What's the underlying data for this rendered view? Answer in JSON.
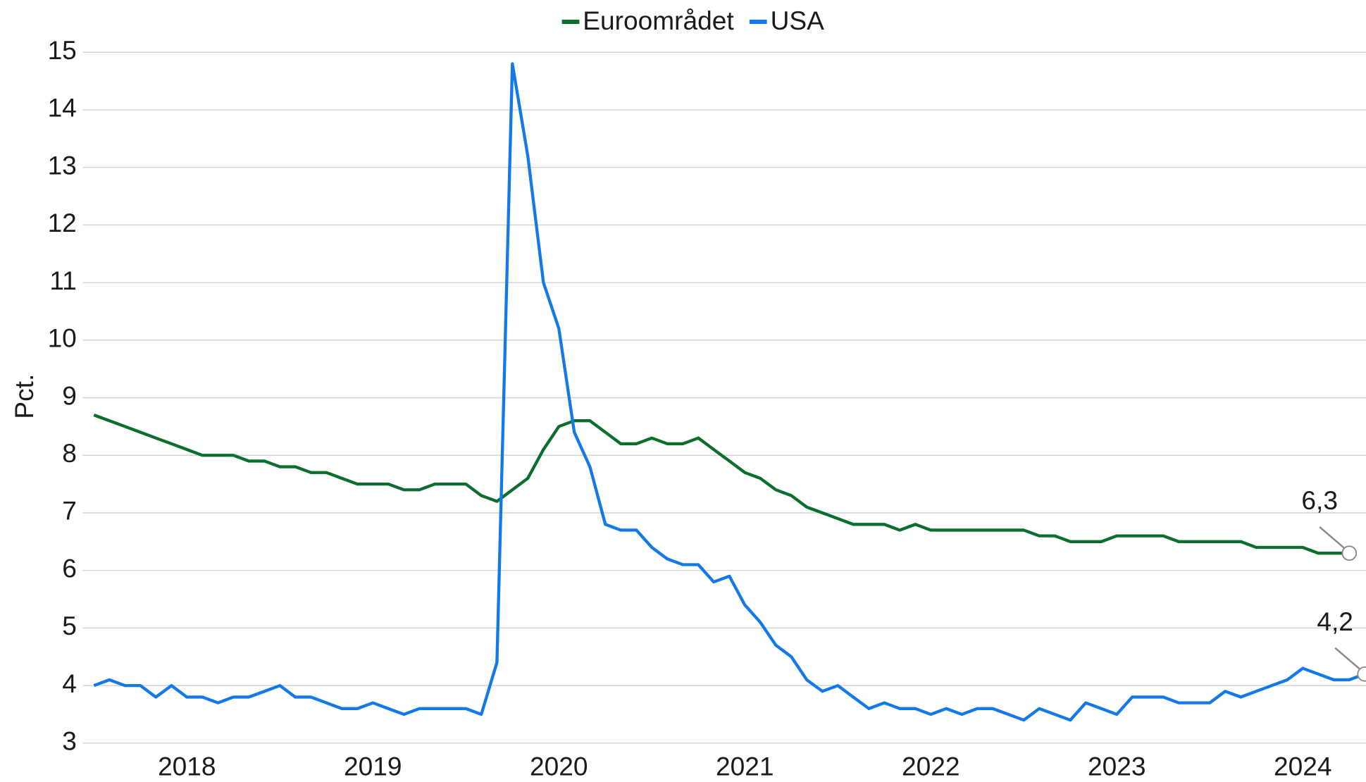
{
  "chart_data": {
    "type": "line",
    "ylabel": "Pct.",
    "legend": "top",
    "grid": true,
    "xlim": [
      2017.94,
      2024.84
    ],
    "xticks": [
      {
        "value": 2018.5,
        "label": "2018"
      },
      {
        "value": 2019.5,
        "label": "2019"
      },
      {
        "value": 2020.5,
        "label": "2020"
      },
      {
        "value": 2021.5,
        "label": "2021"
      },
      {
        "value": 2022.5,
        "label": "2022"
      },
      {
        "value": 2023.5,
        "label": "2023"
      },
      {
        "value": 2024.5,
        "label": "2024"
      }
    ],
    "ylim": [
      3,
      15
    ],
    "yticks": [
      3,
      4,
      5,
      6,
      7,
      8,
      9,
      10,
      11,
      12,
      13,
      14,
      15
    ],
    "x": [
      2018,
      2018.083,
      2018.167,
      2018.25,
      2018.333,
      2018.417,
      2018.5,
      2018.583,
      2018.667,
      2018.75,
      2018.833,
      2018.917,
      2019,
      2019.083,
      2019.167,
      2019.25,
      2019.333,
      2019.417,
      2019.5,
      2019.583,
      2019.667,
      2019.75,
      2019.833,
      2019.917,
      2020,
      2020.083,
      2020.167,
      2020.25,
      2020.333,
      2020.417,
      2020.5,
      2020.583,
      2020.667,
      2020.75,
      2020.833,
      2020.917,
      2021,
      2021.083,
      2021.167,
      2021.25,
      2021.333,
      2021.417,
      2021.5,
      2021.583,
      2021.667,
      2021.75,
      2021.833,
      2021.917,
      2022,
      2022.083,
      2022.167,
      2022.25,
      2022.333,
      2022.417,
      2022.5,
      2022.583,
      2022.667,
      2022.75,
      2022.833,
      2022.917,
      2023,
      2023.083,
      2023.167,
      2023.25,
      2023.333,
      2023.417,
      2023.5,
      2023.583,
      2023.667,
      2023.75,
      2023.833,
      2023.917,
      2024,
      2024.083,
      2024.167,
      2024.25,
      2024.333,
      2024.417,
      2024.5,
      2024.583,
      2024.667,
      2024.75,
      2024.833
    ],
    "series": [
      {
        "name": "Euroområdet",
        "color": "#0b6e2e",
        "values": [
          8.7,
          8.6,
          8.5,
          8.4,
          8.3,
          8.2,
          8.1,
          8.0,
          8.0,
          8.0,
          7.9,
          7.9,
          7.8,
          7.8,
          7.7,
          7.7,
          7.6,
          7.5,
          7.5,
          7.5,
          7.4,
          7.4,
          7.5,
          7.5,
          7.5,
          7.3,
          7.2,
          7.4,
          7.6,
          8.1,
          8.5,
          8.6,
          8.6,
          8.4,
          8.2,
          8.2,
          8.3,
          8.2,
          8.2,
          8.3,
          8.1,
          7.9,
          7.7,
          7.6,
          7.4,
          7.3,
          7.1,
          7.0,
          6.9,
          6.8,
          6.8,
          6.8,
          6.7,
          6.8,
          6.7,
          6.7,
          6.7,
          6.7,
          6.7,
          6.7,
          6.7,
          6.6,
          6.6,
          6.5,
          6.5,
          6.5,
          6.6,
          6.6,
          6.6,
          6.6,
          6.5,
          6.5,
          6.5,
          6.5,
          6.5,
          6.4,
          6.4,
          6.4,
          6.4,
          6.3,
          6.3,
          6.3,
          null
        ],
        "value_labels": [
          null,
          null,
          null,
          null,
          null,
          null,
          null,
          null,
          null,
          null,
          null,
          null,
          null,
          null,
          null,
          null,
          null,
          null,
          null,
          null,
          null,
          null,
          null,
          null,
          null,
          null,
          null,
          null,
          null,
          null,
          null,
          null,
          null,
          null,
          null,
          null,
          null,
          null,
          null,
          null,
          null,
          null,
          null,
          null,
          null,
          null,
          null,
          null,
          null,
          null,
          null,
          null,
          null,
          null,
          null,
          null,
          null,
          null,
          null,
          null,
          null,
          null,
          null,
          null,
          null,
          null,
          null,
          null,
          null,
          null,
          null,
          null,
          null,
          null,
          null,
          null,
          null,
          null,
          null,
          null,
          null,
          "6,3",
          null
        ]
      },
      {
        "name": "USA",
        "color": "#1479e8",
        "values": [
          4.0,
          4.1,
          4.0,
          4.0,
          3.8,
          4.0,
          3.8,
          3.8,
          3.7,
          3.8,
          3.8,
          3.9,
          4.0,
          3.8,
          3.8,
          3.7,
          3.6,
          3.6,
          3.7,
          3.6,
          3.5,
          3.6,
          3.6,
          3.6,
          3.6,
          3.5,
          4.4,
          14.8,
          13.2,
          11.0,
          10.2,
          8.4,
          7.8,
          6.8,
          6.7,
          6.7,
          6.4,
          6.2,
          6.1,
          6.1,
          5.8,
          5.9,
          5.4,
          5.1,
          4.7,
          4.5,
          4.1,
          3.9,
          4.0,
          3.8,
          3.6,
          3.7,
          3.6,
          3.6,
          3.5,
          3.6,
          3.5,
          3.6,
          3.6,
          3.5,
          3.4,
          3.6,
          3.5,
          3.4,
          3.7,
          3.6,
          3.5,
          3.8,
          3.8,
          3.8,
          3.7,
          3.7,
          3.7,
          3.9,
          3.8,
          3.9,
          4.0,
          4.1,
          4.3,
          4.2,
          4.1,
          4.1,
          4.2
        ],
        "value_labels": [
          null,
          null,
          null,
          null,
          null,
          null,
          null,
          null,
          null,
          null,
          null,
          null,
          null,
          null,
          null,
          null,
          null,
          null,
          null,
          null,
          null,
          null,
          null,
          null,
          null,
          null,
          null,
          null,
          null,
          null,
          null,
          null,
          null,
          null,
          null,
          null,
          null,
          null,
          null,
          null,
          null,
          null,
          null,
          null,
          null,
          null,
          null,
          null,
          null,
          null,
          null,
          null,
          null,
          null,
          null,
          null,
          null,
          null,
          null,
          null,
          null,
          null,
          null,
          null,
          null,
          null,
          null,
          null,
          null,
          null,
          null,
          null,
          null,
          null,
          null,
          null,
          null,
          null,
          null,
          null,
          null,
          null,
          "4,2"
        ]
      }
    ]
  }
}
